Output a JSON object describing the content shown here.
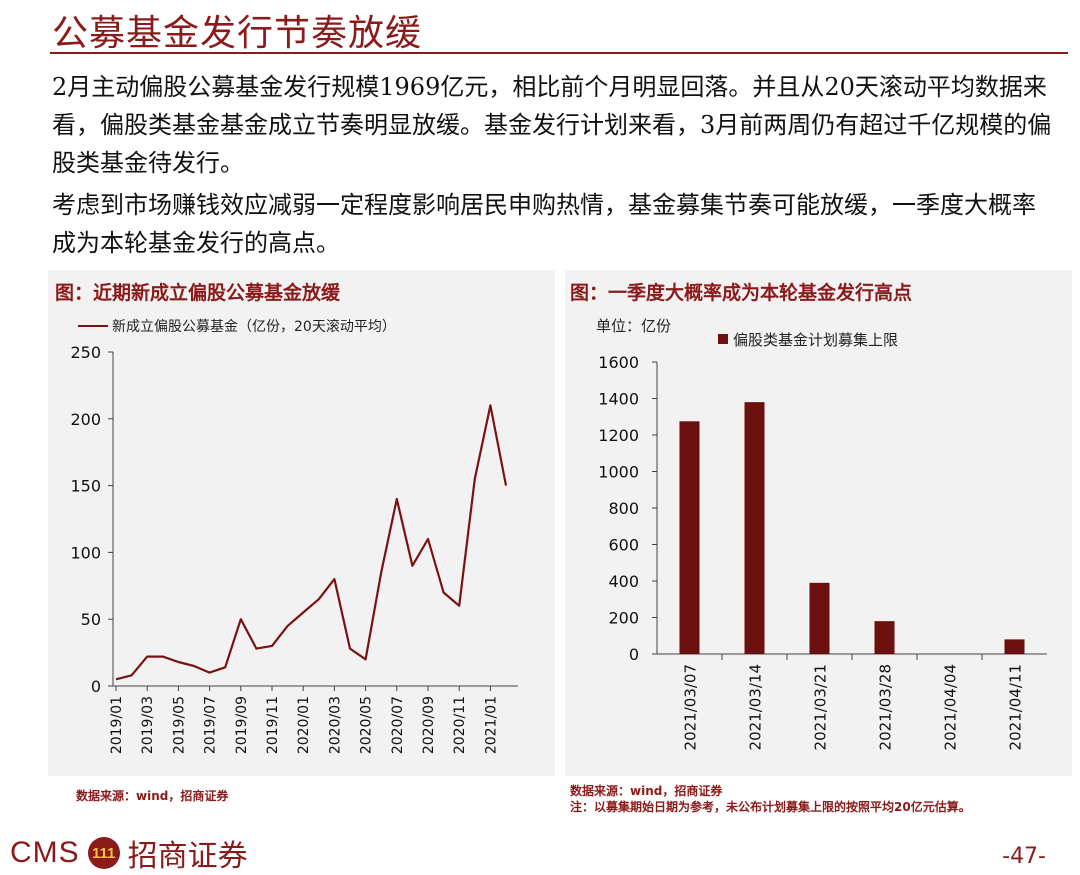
{
  "title": "公募基金发行节奏放缓",
  "paragraphs": [
    "2月主动偏股公募基金发行规模1969亿元，相比前个月明显回落。并且从20天滚动平均数据来看，偏股类基金基金成立节奏明显放缓。基金发行计划来看，3月前两周仍有超过千亿规模的偏股类基金待发行。",
    "考虑到市场赚钱效应减弱一定程度影响居民申购热情，基金募集节奏可能放缓，一季度大概率成为本轮基金发行的高点。"
  ],
  "colors": {
    "accent": "#8b1a1a",
    "bar": "#6b0f0f",
    "line": "#7a1212",
    "panel_bg": "#f2f2f2"
  },
  "chart_data": [
    {
      "type": "line",
      "panel_title": "图：近期新成立偏股公募基金放缓",
      "series": [
        {
          "name": "新成立偏股公募基金（亿份，20天滚动平均）",
          "x": [
            "2019-01",
            "2019-02",
            "2019-03",
            "2019-04",
            "2019-05",
            "2019-06",
            "2019-07",
            "2019-08",
            "2019-09",
            "2019-10",
            "2019-11",
            "2019-12",
            "2020-01",
            "2020-02",
            "2020-03",
            "2020-04",
            "2020-05",
            "2020-06",
            "2020-07",
            "2020-08",
            "2020-09",
            "2020-10",
            "2020-11",
            "2020-12",
            "2021-01",
            "2021-02"
          ],
          "values": [
            5,
            8,
            22,
            22,
            18,
            15,
            10,
            14,
            50,
            28,
            30,
            45,
            55,
            65,
            80,
            28,
            20,
            85,
            140,
            90,
            110,
            70,
            60,
            155,
            210,
            150
          ]
        }
      ],
      "xticks": [
        "2019/01",
        "2019/03",
        "2019/05",
        "2019/07",
        "2019/09",
        "2019/11",
        "2020/01",
        "2020/03",
        "2020/05",
        "2020/07",
        "2020/09",
        "2020/11",
        "2021/01"
      ],
      "yticks": [
        "0",
        "50",
        "100",
        "150",
        "200",
        "250"
      ],
      "ylim": [
        0,
        250
      ]
    },
    {
      "type": "bar",
      "panel_title": "图：一季度大概率成为本轮基金发行高点",
      "unit_label": "单位：亿份",
      "series": [
        {
          "name": "偏股类基金计划募集上限",
          "values": [
            1275,
            1380,
            390,
            180,
            0,
            80
          ]
        }
      ],
      "categories": [
        "2021/03/07",
        "2021/03/14",
        "2021/03/21",
        "2021/03/28",
        "2021/04/04",
        "2021/04/11"
      ],
      "yticks": [
        "0",
        "200",
        "400",
        "600",
        "800",
        "1000",
        "1200",
        "1400",
        "1600"
      ],
      "ylim": [
        0,
        1600
      ]
    }
  ],
  "source_left": "数据来源：wind，招商证券",
  "source_right": "数据来源：wind，招商证券",
  "note_right": "注：以募集期始日期为参考，未公布计划募集上限的按照平均20亿元估算。",
  "logo": {
    "cms": "CMS",
    "badge": "111",
    "cn": "招商证券"
  },
  "page_number": "-47-"
}
